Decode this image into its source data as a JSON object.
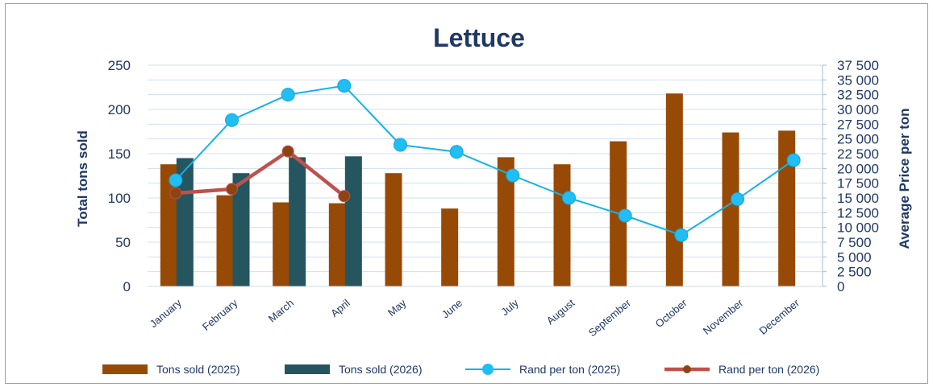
{
  "chart_data": {
    "type": "bar",
    "title": "Lettuce",
    "ylabel": "Total tons sold",
    "y2label": "Average Price per ton",
    "categories": [
      "January",
      "February",
      "March",
      "April",
      "May",
      "June",
      "July",
      "August",
      "September",
      "October",
      "November",
      "December"
    ],
    "ylim": [
      0,
      250
    ],
    "yticks": [
      "0",
      "50",
      "100",
      "150",
      "200",
      "250"
    ],
    "y2lim": [
      0,
      37500
    ],
    "y2ticks": [
      "0",
      "2 500",
      "5 000",
      "7 500",
      "10 000",
      "12 500",
      "15 000",
      "17 500",
      "20 000",
      "22 500",
      "25 000",
      "27 500",
      "30 000",
      "32 500",
      "35 000",
      "37 500"
    ],
    "grid": true,
    "legend_position": "bottom",
    "series": [
      {
        "name": "Tons sold (2025)",
        "kind": "bar",
        "axis": "left",
        "color": "#974a06",
        "values": [
          138,
          103,
          95,
          94,
          128,
          88,
          146,
          138,
          164,
          218,
          174,
          176
        ]
      },
      {
        "name": "Tons sold (2026)",
        "kind": "bar",
        "axis": "left",
        "color": "#25555f",
        "values": [
          145,
          128,
          146,
          147,
          null,
          null,
          null,
          null,
          null,
          null,
          null,
          null
        ]
      },
      {
        "name": "Rand per ton (2025)",
        "kind": "line",
        "axis": "right",
        "color": "#14b2e9",
        "values": [
          18000,
          28200,
          32500,
          34000,
          24000,
          22800,
          18800,
          15000,
          12000,
          8700,
          14800,
          21400
        ]
      },
      {
        "name": "Rand per ton (2026)",
        "kind": "line",
        "axis": "right",
        "color": "#c0504d",
        "values": [
          15800,
          16500,
          22900,
          15300,
          null,
          null,
          null,
          null,
          null,
          null,
          null,
          null
        ]
      }
    ]
  }
}
